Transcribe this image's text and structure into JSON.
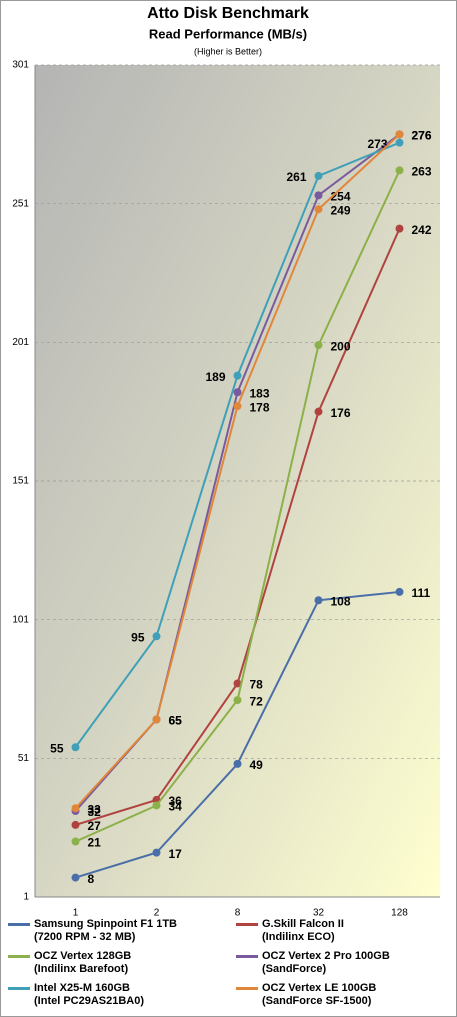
{
  "chart_data": {
    "type": "line",
    "title": "Atto Disk Benchmark",
    "subtitle": "Read Performance (MB/s)",
    "note": "(Higher is Better)",
    "categories": [
      "1",
      "2",
      "8",
      "32",
      "128"
    ],
    "ylim": [
      1,
      301
    ],
    "yticks": [
      1,
      51,
      101,
      151,
      201,
      251,
      301
    ],
    "grid": true,
    "series": [
      {
        "name": "Samsung Spinpoint F1 1TB\n(7200 RPM - 32 MB)",
        "color": "#4a6fa8",
        "values": [
          8,
          17,
          49,
          108,
          111
        ]
      },
      {
        "name": "G.Skill Falcon II\n(Indilinx ECO)",
        "color": "#b0433f",
        "values": [
          27,
          36,
          78,
          176,
          242
        ]
      },
      {
        "name": "OCZ Vertex 128GB\n(Indilinx Barefoot)",
        "color": "#8cb04a",
        "values": [
          21,
          34,
          72,
          200,
          263
        ]
      },
      {
        "name": "OCZ Vertex 2 Pro 100GB\n(SandForce)",
        "color": "#7a5a9e",
        "values": [
          32,
          65,
          183,
          254,
          276
        ]
      },
      {
        "name": "Intel X25-M 160GB\n(Intel PC29AS21BA0)",
        "color": "#3fa0b8",
        "values": [
          55,
          95,
          189,
          261,
          273
        ]
      },
      {
        "name": "OCZ Vertex LE 100GB\n(SandForce SF-1500)",
        "color": "#e0873a",
        "values": [
          33,
          65,
          178,
          249,
          276
        ]
      }
    ]
  }
}
